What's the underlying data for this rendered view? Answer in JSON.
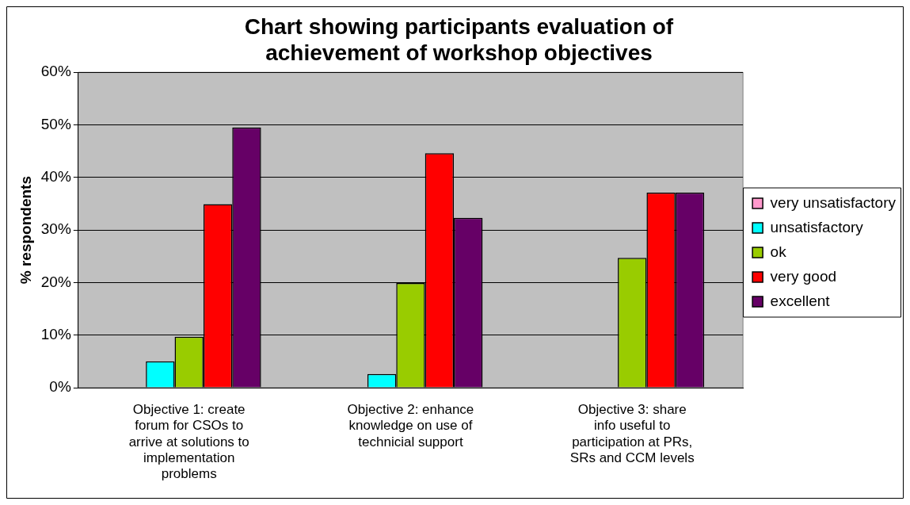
{
  "chart_data": {
    "type": "bar",
    "title": "Chart showing participants evaluation of achievement of workshop objectives",
    "ylabel": "% respondents",
    "categories": [
      "Objective 1: create forum for CSOs to arrive at solutions to implementation problems",
      "Objective 2: enhance knowledge on use of technicial support",
      "Objective 3: share info useful to participation at PRs, SRs and CCM levels"
    ],
    "series": [
      {
        "name": "very unsatisfactory",
        "color": "#ff99cc",
        "values": [
          0,
          0,
          0
        ]
      },
      {
        "name": "unsatisfactory",
        "color": "#00ffff",
        "values": [
          5,
          2.6,
          0
        ]
      },
      {
        "name": "ok",
        "color": "#99cc00",
        "values": [
          9.7,
          19.9,
          24.7
        ]
      },
      {
        "name": "very good",
        "color": "#ff0000",
        "values": [
          34.9,
          44.6,
          37.1
        ]
      },
      {
        "name": "excellent",
        "color": "#660066",
        "values": [
          49.5,
          32.3,
          37.1
        ]
      }
    ],
    "ylim": [
      0,
      60
    ],
    "yticks": [
      {
        "value": 0,
        "label": "0%"
      },
      {
        "value": 10,
        "label": "10%"
      },
      {
        "value": 20,
        "label": "20%"
      },
      {
        "value": 30,
        "label": "30%"
      },
      {
        "value": 40,
        "label": "40%"
      },
      {
        "value": 50,
        "label": "50%"
      },
      {
        "value": 60,
        "label": "60%"
      }
    ],
    "grid": "y",
    "legend": "right"
  }
}
